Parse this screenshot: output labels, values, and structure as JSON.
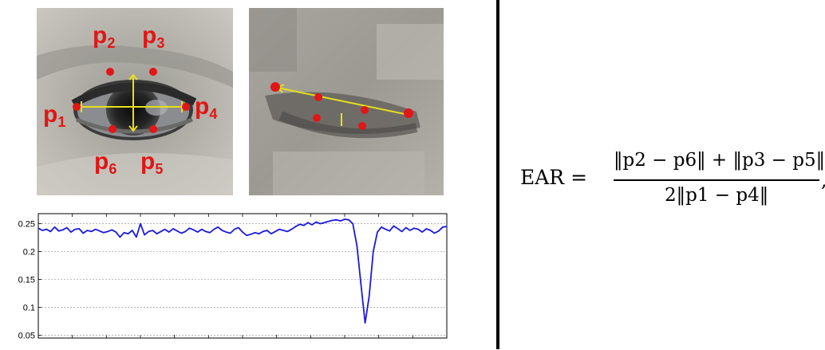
{
  "open_eye": {
    "labels": [
      {
        "letter": "p",
        "sub": "1"
      },
      {
        "letter": "p",
        "sub": "2"
      },
      {
        "letter": "p",
        "sub": "3"
      },
      {
        "letter": "p",
        "sub": "4"
      },
      {
        "letter": "p",
        "sub": "5"
      },
      {
        "letter": "p",
        "sub": "6"
      }
    ]
  },
  "formula": {
    "lhs": "EAR = ",
    "numerator": "‖p2 − p6‖ + ‖p3 − p5‖",
    "denominator": "2‖p1 − p4‖",
    "trailing": ","
  },
  "chart_data": {
    "type": "line",
    "ytick_labels": [
      "0.25",
      "0.2",
      "0.15",
      "0.1",
      "0.05"
    ],
    "yticks": [
      0.25,
      0.2,
      0.15,
      0.1,
      0.05
    ],
    "ylim": [
      0.045,
      0.268
    ],
    "xlim": [
      0,
      100
    ],
    "grid": true,
    "line_color": "#1a1ae0",
    "series": [
      {
        "x": [
          0,
          1,
          2,
          3,
          4,
          5,
          6,
          7,
          8,
          9,
          10,
          11,
          12,
          13,
          14,
          15,
          16,
          17,
          18,
          19,
          20,
          21,
          22,
          23,
          24,
          25,
          26,
          27,
          28,
          29,
          30,
          31,
          32,
          33,
          34,
          35,
          36,
          37,
          38,
          39,
          40,
          41,
          42,
          43,
          44,
          45,
          46,
          47,
          48,
          49,
          50,
          51,
          52,
          53,
          54,
          55,
          56,
          57,
          58,
          59,
          60,
          61,
          62,
          63,
          64,
          65,
          66,
          67,
          68,
          69,
          70,
          71,
          72,
          73,
          74,
          75,
          76,
          77,
          78,
          79,
          80,
          81,
          82,
          83,
          84,
          85,
          86,
          87,
          88,
          89,
          90,
          91,
          92,
          93,
          94,
          95,
          96,
          97,
          98,
          99,
          100
        ],
        "values": [
          0.242,
          0.238,
          0.24,
          0.236,
          0.244,
          0.237,
          0.239,
          0.243,
          0.235,
          0.24,
          0.241,
          0.233,
          0.238,
          0.236,
          0.24,
          0.237,
          0.234,
          0.236,
          0.239,
          0.235,
          0.226,
          0.234,
          0.232,
          0.238,
          0.226,
          0.25,
          0.23,
          0.236,
          0.238,
          0.232,
          0.236,
          0.24,
          0.235,
          0.241,
          0.237,
          0.233,
          0.236,
          0.242,
          0.239,
          0.235,
          0.24,
          0.236,
          0.234,
          0.24,
          0.244,
          0.238,
          0.235,
          0.233,
          0.24,
          0.243,
          0.235,
          0.229,
          0.231,
          0.234,
          0.232,
          0.236,
          0.238,
          0.232,
          0.236,
          0.24,
          0.238,
          0.236,
          0.24,
          0.245,
          0.249,
          0.247,
          0.252,
          0.248,
          0.253,
          0.25,
          0.252,
          0.254,
          0.256,
          0.257,
          0.255,
          0.258,
          0.257,
          0.25,
          0.21,
          0.14,
          0.072,
          0.12,
          0.2,
          0.235,
          0.244,
          0.24,
          0.237,
          0.246,
          0.241,
          0.236,
          0.243,
          0.238,
          0.242,
          0.24,
          0.235,
          0.241,
          0.238,
          0.233,
          0.237,
          0.244,
          0.245
        ]
      }
    ]
  }
}
